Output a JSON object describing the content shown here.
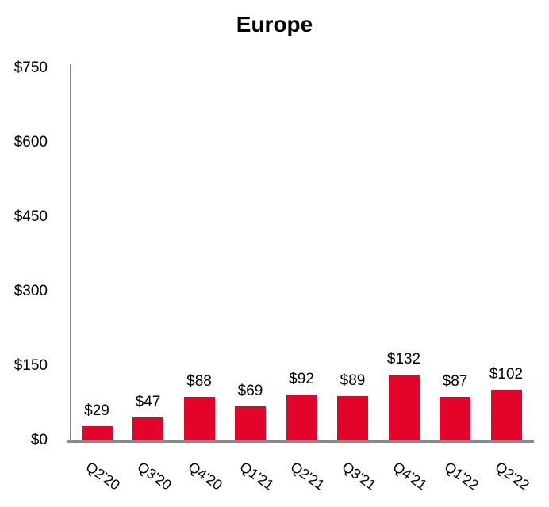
{
  "chart_data": {
    "type": "bar",
    "title": "Europe",
    "categories": [
      "Q2'20",
      "Q3'20",
      "Q4'20",
      "Q1'21",
      "Q2'21",
      "Q3'21",
      "Q4'21",
      "Q1'22",
      "Q2'22"
    ],
    "values": [
      29,
      47,
      88,
      69,
      92,
      89,
      132,
      87,
      102
    ],
    "data_labels": [
      "$29",
      "$47",
      "$88",
      "$69",
      "$92",
      "$89",
      "$132",
      "$87",
      "$102"
    ],
    "value_prefix": "$",
    "y_ticks": [
      "$0",
      "$150",
      "$300",
      "$450",
      "$600",
      "$750"
    ],
    "y_tick_values": [
      0,
      150,
      300,
      450,
      600,
      750
    ],
    "ylim": [
      0,
      750
    ],
    "xlabel": "",
    "ylabel": "",
    "grid": false,
    "legend": false,
    "x_label_rotation_deg": 35,
    "bar_color": "#e40329",
    "axis_color": "#8a8a8a",
    "text_color": "#000000",
    "background_color": "#ffffff"
  }
}
